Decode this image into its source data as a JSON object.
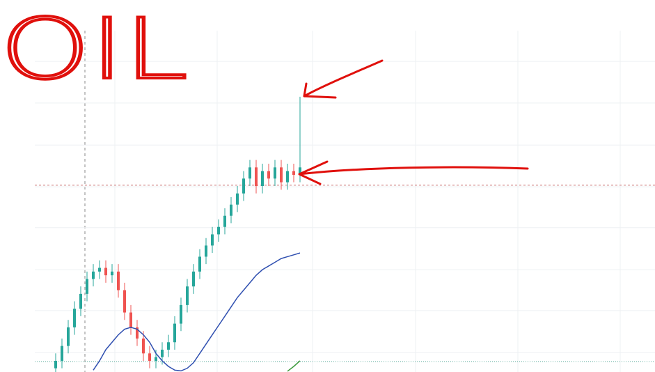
{
  "chart_data": {
    "type": "candlestick",
    "title": "OIL",
    "open": [
      1,
      3,
      7,
      12,
      17,
      21,
      25,
      27,
      28,
      26,
      27,
      22,
      16,
      12,
      9,
      5,
      3,
      4,
      6,
      8,
      13,
      18,
      23,
      27,
      31,
      34,
      37,
      39,
      42,
      45,
      48,
      52,
      55,
      50,
      54,
      52,
      55,
      51,
      54,
      53
    ],
    "high": [
      5,
      9,
      14,
      19,
      23,
      27,
      29,
      30,
      30,
      29,
      29,
      24,
      18,
      14,
      11,
      7,
      6,
      8,
      10,
      15,
      20,
      25,
      29,
      33,
      36,
      39,
      41,
      44,
      47,
      50,
      54,
      57,
      57,
      56,
      56,
      57,
      57,
      56,
      56,
      74
    ],
    "low": [
      0,
      1,
      5,
      10,
      15,
      19,
      23,
      25,
      24,
      24,
      20,
      14,
      10,
      7,
      3,
      1,
      1,
      2,
      4,
      6,
      11,
      16,
      21,
      25,
      29,
      32,
      35,
      37,
      40,
      43,
      46,
      50,
      48,
      48,
      50,
      50,
      49,
      49,
      51,
      51
    ],
    "close": [
      3,
      7,
      12,
      17,
      21,
      25,
      27,
      28,
      26,
      27,
      22,
      16,
      12,
      9,
      5,
      3,
      4,
      6,
      8,
      13,
      18,
      23,
      27,
      31,
      34,
      37,
      39,
      42,
      45,
      48,
      52,
      55,
      50,
      54,
      52,
      55,
      51,
      54,
      53,
      55
    ],
    "up_color": "#26a69a",
    "down_color": "#ef5350",
    "series": [
      {
        "color": "#2f4fb0",
        "values": [
          null,
          null,
          null,
          null,
          null,
          null,
          0.5,
          3,
          6,
          8,
          10,
          11.5,
          12,
          11.5,
          10,
          8,
          5,
          3,
          1.5,
          0.5,
          0.3,
          1,
          2.5,
          5,
          7.5,
          10,
          12.5,
          15,
          17.5,
          20,
          22,
          24,
          26,
          27.5,
          28.5,
          29.5,
          30.5,
          31,
          31.5,
          32
        ]
      },
      {
        "color": "#3c9a3c",
        "values": [
          null,
          null,
          null,
          null,
          null,
          null,
          null,
          null,
          null,
          null,
          null,
          null,
          null,
          null,
          null,
          null,
          null,
          null,
          null,
          null,
          null,
          null,
          null,
          null,
          null,
          null,
          null,
          null,
          null,
          null,
          null,
          null,
          null,
          null,
          null,
          null,
          null,
          0.2,
          1.5,
          3
        ]
      }
    ],
    "price_line": 50.2,
    "low_line": 2.8,
    "ylim": [
      0,
      100
    ],
    "yticks": [
      5.2,
      16.5,
      27.5,
      38.8,
      49.8,
      61,
      72.3,
      83.5
    ],
    "grid": true
  }
}
